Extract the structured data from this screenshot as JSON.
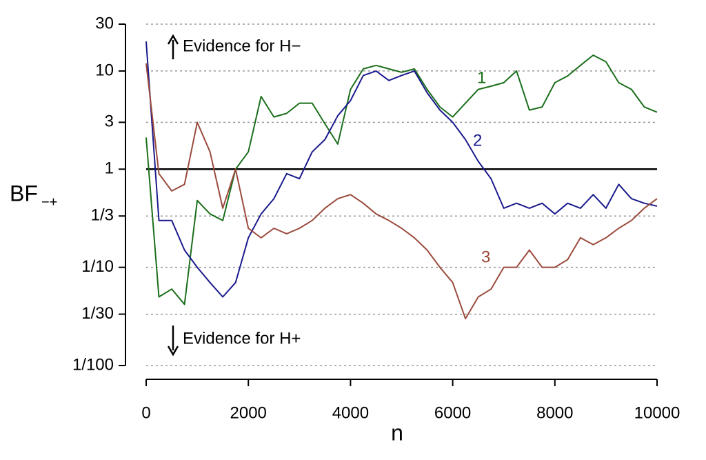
{
  "chart_data": {
    "type": "line",
    "xlabel": "n",
    "ylabel": "BF",
    "ylabel_subscript": "−+",
    "annotations": [
      "Evidence for H−",
      "Evidence for H+"
    ],
    "log_y": true,
    "grid": true,
    "reference_line": 1,
    "xlim": [
      0,
      10000
    ],
    "xticks": [
      0,
      2000,
      4000,
      6000,
      8000,
      10000
    ],
    "ylim": [
      0.01,
      30
    ],
    "yticks": [
      30,
      10,
      3,
      1,
      {
        "value": 0.3333,
        "label": "1/3"
      },
      {
        "value": 0.1,
        "label": "1/10"
      },
      {
        "value": 0.03333,
        "label": "1/30"
      },
      {
        "value": 0.01,
        "label": "1/100"
      }
    ],
    "x": [
      0,
      250,
      500,
      750,
      1000,
      1250,
      1500,
      1750,
      2000,
      2250,
      2500,
      2750,
      3000,
      3250,
      3500,
      3750,
      4000,
      4250,
      4500,
      4750,
      5000,
      5250,
      5500,
      5750,
      6000,
      6250,
      6500,
      6750,
      7000,
      7250,
      7500,
      7750,
      8000,
      8250,
      8500,
      8750,
      9000,
      9250,
      9500,
      9750,
      10000
    ],
    "series": [
      {
        "name": "1",
        "color": "#1a6e1a",
        "values": [
          2.1,
          0.05,
          0.06,
          0.042,
          0.48,
          0.35,
          0.3,
          1.0,
          1.5,
          5.5,
          3.4,
          3.7,
          4.7,
          4.7,
          2.9,
          1.8,
          6.5,
          10.5,
          11.4,
          10.5,
          9.7,
          10.5,
          6.5,
          4.3,
          3.4,
          4.7,
          6.5,
          7,
          7.6,
          10,
          4,
          4.3,
          7.6,
          8.9,
          11.4,
          14.5,
          12.4,
          7.6,
          6.5,
          4.3,
          3.8
        ]
      },
      {
        "name": "2",
        "color": "#1a1a8c",
        "values": [
          20,
          0.3,
          0.3,
          0.15,
          0.1,
          0.07,
          0.05,
          0.07,
          0.2,
          0.35,
          0.5,
          0.9,
          0.8,
          1.5,
          2.0,
          3.5,
          5,
          9,
          10,
          8,
          9,
          10,
          6,
          4,
          3,
          2,
          1.2,
          0.8,
          0.4,
          0.45,
          0.4,
          0.45,
          0.35,
          0.45,
          0.4,
          0.55,
          0.4,
          0.7,
          0.5,
          0.45,
          0.42
        ]
      },
      {
        "name": "3",
        "color": "#9a4a3c",
        "values": [
          12,
          0.9,
          0.6,
          0.7,
          3,
          1.5,
          0.4,
          1,
          0.25,
          0.2,
          0.25,
          0.22,
          0.25,
          0.3,
          0.4,
          0.5,
          0.55,
          0.45,
          0.35,
          0.3,
          0.25,
          0.2,
          0.15,
          0.1,
          0.07,
          0.03,
          0.05,
          0.06,
          0.1,
          0.1,
          0.15,
          0.1,
          0.1,
          0.12,
          0.2,
          0.17,
          0.2,
          0.25,
          0.3,
          0.4,
          0.5
        ]
      }
    ]
  }
}
